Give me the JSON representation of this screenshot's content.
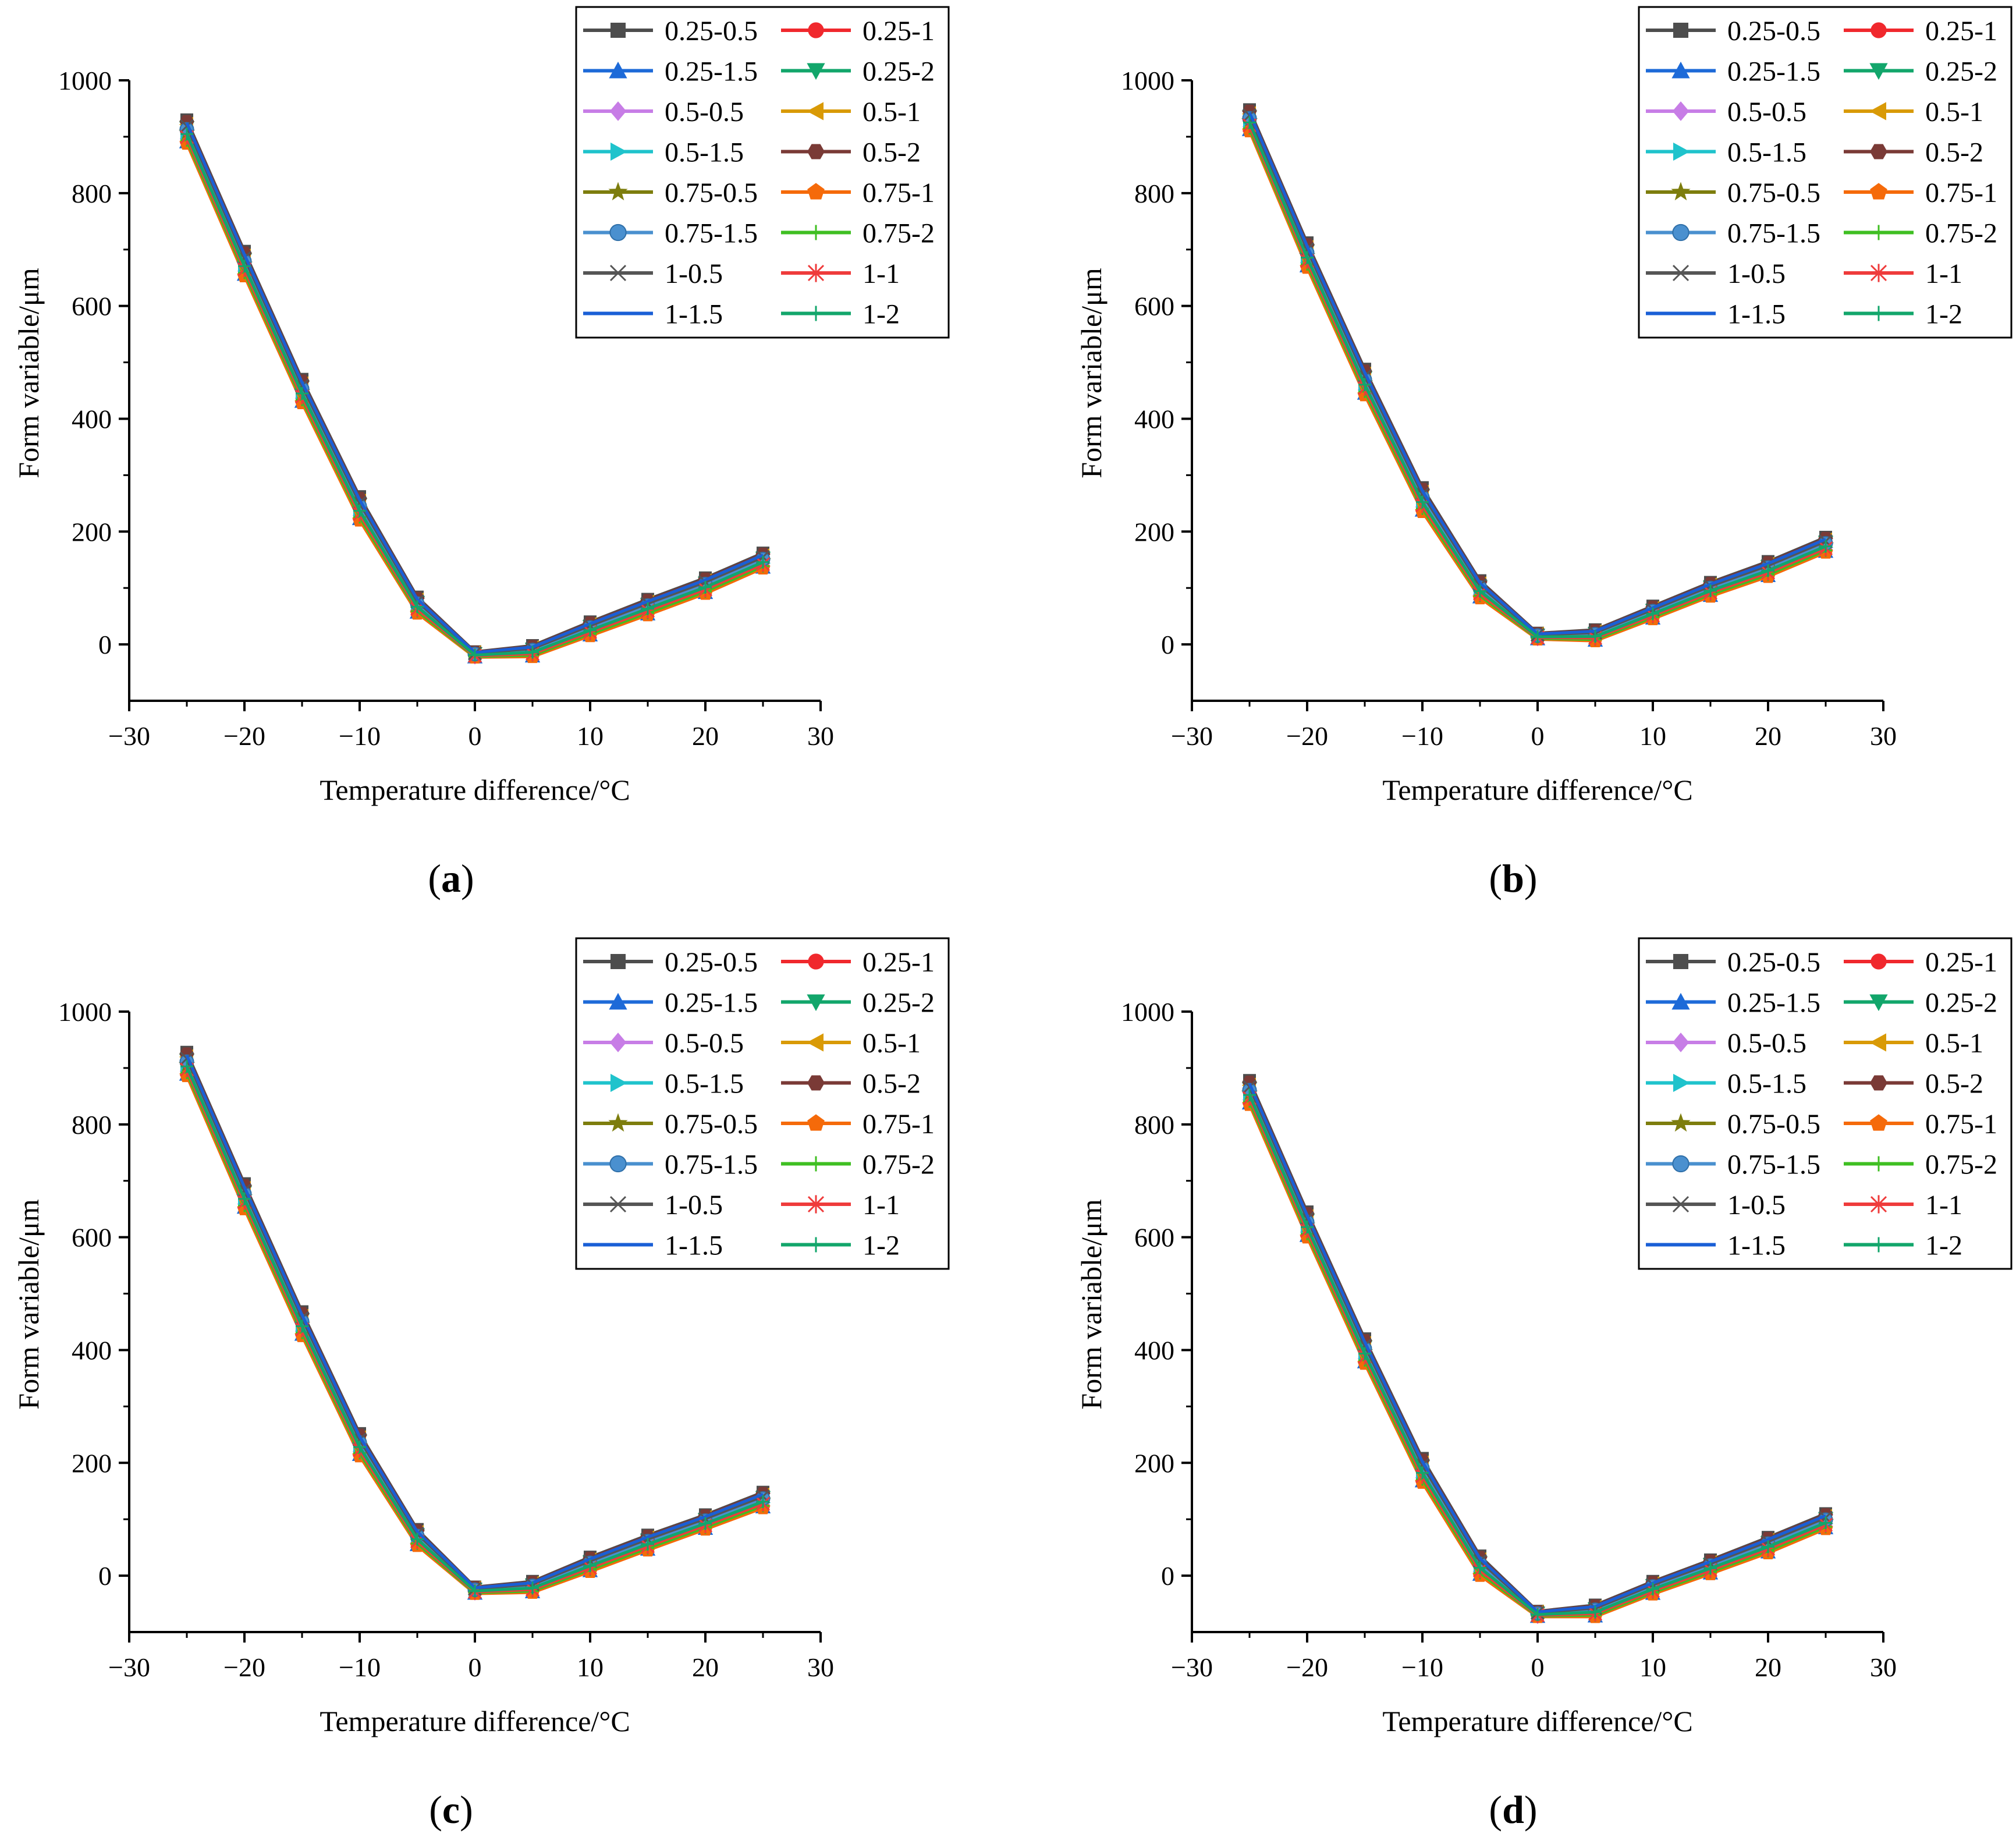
{
  "figure": {
    "x_values": [
      -25,
      -20,
      -15,
      -10,
      -5,
      0,
      5,
      10,
      15,
      20,
      25
    ],
    "legend_entries": [
      {
        "name": "0.25-0.5",
        "color": "#4d4d4d",
        "marker": "square"
      },
      {
        "name": "0.25-1",
        "color": "#f0282d",
        "marker": "circle"
      },
      {
        "name": "0.25-1.5",
        "color": "#1d6ad8",
        "marker": "triangle-up"
      },
      {
        "name": "0.25-2",
        "color": "#12a66b",
        "marker": "triangle-down"
      },
      {
        "name": "0.5-0.5",
        "color": "#c77de6",
        "marker": "diamond"
      },
      {
        "name": "0.5-1",
        "color": "#d99a06",
        "marker": "triangle-left"
      },
      {
        "name": "0.5-1.5",
        "color": "#1fc3cc",
        "marker": "triangle-right"
      },
      {
        "name": "0.5-2",
        "color": "#7a3a36",
        "marker": "hexagon"
      },
      {
        "name": "0.75-0.5",
        "color": "#7d7d0d",
        "marker": "star"
      },
      {
        "name": "0.75-1",
        "color": "#f56a0a",
        "marker": "pentagon"
      },
      {
        "name": "0.75-1.5",
        "color": "#4a90cf",
        "marker": "sphere"
      },
      {
        "name": "0.75-2",
        "color": "#3fbf22",
        "marker": "plus"
      },
      {
        "name": "1-0.5",
        "color": "#555555",
        "marker": "x"
      },
      {
        "name": "1-1",
        "color": "#ef3b3b",
        "marker": "asterisk"
      },
      {
        "name": "1-1.5",
        "color": "#1a5fd6",
        "marker": "none"
      },
      {
        "name": "1-2",
        "color": "#12a66b",
        "marker": "cross"
      }
    ]
  },
  "chart_data": [
    {
      "type": "line",
      "panel_label": "a",
      "xlabel": "Temperature difference/°C",
      "ylabel": "Form variable/μm",
      "xlim": [
        -30,
        30
      ],
      "ylim": [
        -100,
        1000
      ],
      "xticks": [
        "−30",
        "−20",
        "−10",
        "0",
        "10",
        "20",
        "30"
      ],
      "yticks": [
        "0",
        "200",
        "400",
        "600",
        "800",
        "1000"
      ],
      "legend": "top-right",
      "x": [
        -25,
        -20,
        -15,
        -10,
        -5,
        0,
        5,
        10,
        15,
        20,
        25
      ],
      "upper": [
        930,
        697,
        470,
        262,
        84,
        -13,
        -2,
        40,
        80,
        118,
        162
      ],
      "lower": [
        888,
        653,
        428,
        220,
        55,
        -23,
        -22,
        15,
        52,
        90,
        135
      ]
    },
    {
      "type": "line",
      "panel_label": "b",
      "xlabel": "Temperature difference/°C",
      "ylabel": "Form variable/μm",
      "xlim": [
        -30,
        30
      ],
      "ylim": [
        -100,
        1000
      ],
      "xticks": [
        "−30",
        "−20",
        "−10",
        "0",
        "10",
        "20",
        "30"
      ],
      "yticks": [
        "0",
        "200",
        "400",
        "600",
        "800",
        "1000"
      ],
      "legend": "top-right",
      "x": [
        -25,
        -20,
        -15,
        -10,
        -5,
        0,
        5,
        10,
        15,
        20,
        25
      ],
      "upper": [
        948,
        712,
        488,
        278,
        113,
        20,
        26,
        68,
        110,
        147,
        190
      ],
      "lower": [
        910,
        668,
        442,
        235,
        82,
        9,
        6,
        45,
        85,
        120,
        163
      ]
    },
    {
      "type": "line",
      "panel_label": "c",
      "xlabel": "Temperature difference/°C",
      "ylabel": "Form variable/μm",
      "xlim": [
        -30,
        30
      ],
      "ylim": [
        -100,
        1000
      ],
      "xticks": [
        "−30",
        "−20",
        "−10",
        "0",
        "10",
        "20",
        "30"
      ],
      "yticks": [
        "0",
        "200",
        "400",
        "600",
        "800",
        "1000"
      ],
      "legend": "top-right",
      "x": [
        -25,
        -20,
        -15,
        -10,
        -5,
        0,
        5,
        10,
        15,
        20,
        25
      ],
      "upper": [
        928,
        695,
        468,
        252,
        82,
        -20,
        -10,
        33,
        72,
        108,
        148
      ],
      "lower": [
        886,
        650,
        425,
        212,
        53,
        -32,
        -30,
        7,
        45,
        82,
        120
      ]
    },
    {
      "type": "line",
      "panel_label": "d",
      "xlabel": "Temperature difference/°C",
      "ylabel": "Form variable/μm",
      "xlim": [
        -30,
        30
      ],
      "ylim": [
        -100,
        1000
      ],
      "xticks": [
        "−30",
        "−20",
        "−10",
        "0",
        "10",
        "20",
        "30"
      ],
      "yticks": [
        "0",
        "200",
        "400",
        "600",
        "800",
        "1000"
      ],
      "legend": "top-right",
      "x": [
        -25,
        -20,
        -15,
        -10,
        -5,
        0,
        5,
        10,
        15,
        20,
        25
      ],
      "upper": [
        878,
        645,
        420,
        208,
        35,
        -63,
        -52,
        -10,
        28,
        68,
        110
      ],
      "lower": [
        835,
        600,
        376,
        165,
        0,
        -73,
        -73,
        -33,
        3,
        40,
        83
      ]
    }
  ]
}
